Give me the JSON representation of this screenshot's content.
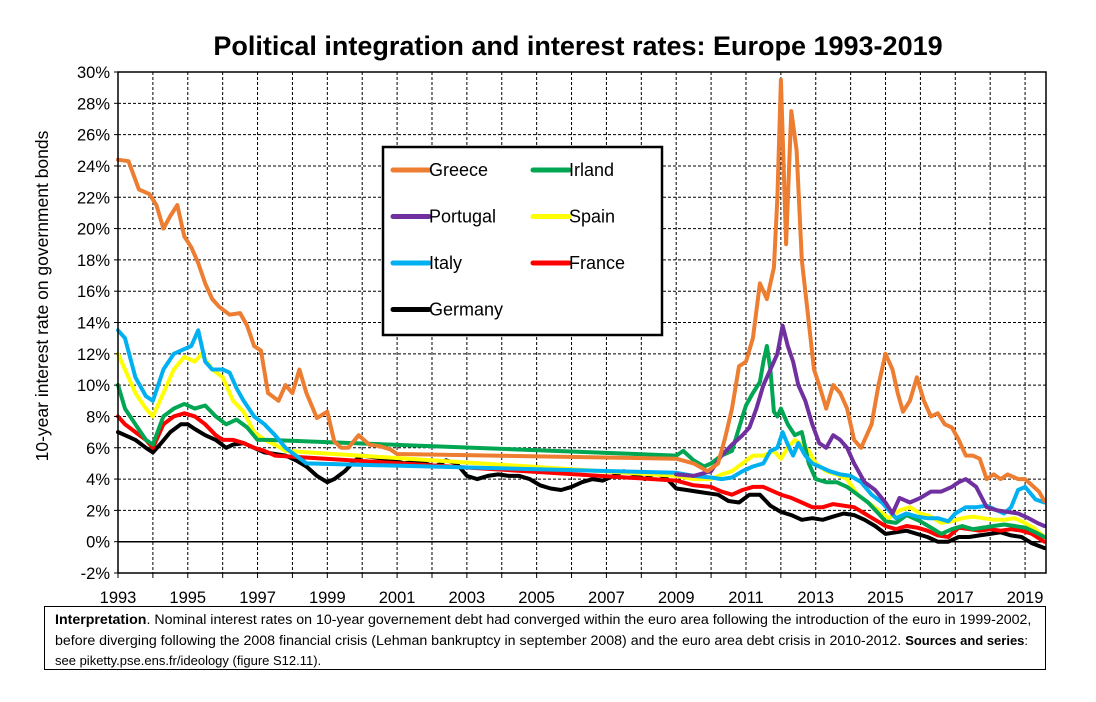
{
  "chart_data": {
    "type": "line",
    "title": "Political integration and interest rates: Europe 1993-2019",
    "ylabel": "10-year interest rate on government bonds",
    "xlabel": "",
    "xlim": [
      1993,
      2019.6
    ],
    "ylim": [
      -2,
      30
    ],
    "y_ticks": [
      -2,
      0,
      2,
      4,
      6,
      8,
      10,
      12,
      14,
      16,
      18,
      20,
      22,
      24,
      26,
      28,
      30
    ],
    "y_tick_labels": [
      "-2%",
      "0%",
      "2%",
      "4%",
      "6%",
      "8%",
      "10%",
      "12%",
      "14%",
      "16%",
      "18%",
      "20%",
      "22%",
      "24%",
      "26%",
      "28%",
      "30%"
    ],
    "x_ticks": [
      1993,
      1995,
      1997,
      1999,
      2001,
      2003,
      2005,
      2007,
      2009,
      2011,
      2013,
      2015,
      2017,
      2019
    ],
    "x_tick_labels": [
      "1993",
      "1995",
      "1997",
      "1999",
      "2001",
      "2003",
      "2005",
      "2007",
      "2009",
      "2011",
      "2013",
      "2015",
      "2017",
      "2019"
    ],
    "grid": true,
    "legend_position": "top-center",
    "series": [
      {
        "name": "Greece",
        "color": "#ED7D31",
        "x": [
          1993,
          1993.3,
          1993.6,
          1993.9,
          1994.1,
          1994.3,
          1994.5,
          1994.7,
          1994.9,
          1995.1,
          1995.3,
          1995.5,
          1995.7,
          1995.9,
          1996.2,
          1996.5,
          1996.7,
          1996.9,
          1997.1,
          1997.3,
          1997.6,
          1997.8,
          1998.0,
          1998.2,
          1998.4,
          1998.7,
          1999.0,
          1999.2,
          1999.4,
          1999.6,
          1999.9,
          2000.2,
          2000.5,
          2000.8,
          2001.0,
          2009.0,
          2009.5,
          2009.9,
          2010.2,
          2010.4,
          2010.6,
          2010.8,
          2011.0,
          2011.2,
          2011.4,
          2011.6,
          2011.8,
          2011.9,
          2012.0,
          2012.15,
          2012.3,
          2012.45,
          2012.6,
          2012.8,
          2012.95,
          2013.1,
          2013.3,
          2013.5,
          2013.7,
          2013.9,
          2014.1,
          2014.3,
          2014.6,
          2014.8,
          2015.0,
          2015.2,
          2015.35,
          2015.5,
          2015.7,
          2015.9,
          2016.1,
          2016.3,
          2016.5,
          2016.7,
          2016.9,
          2017.1,
          2017.3,
          2017.5,
          2017.7,
          2017.9,
          2018.1,
          2018.3,
          2018.5,
          2018.8,
          2019.0,
          2019.2,
          2019.4,
          2019.55
        ],
        "values": [
          24.4,
          24.3,
          22.5,
          22.2,
          21.5,
          20.0,
          20.8,
          21.5,
          19.5,
          18.8,
          17.8,
          16.5,
          15.5,
          15.0,
          14.5,
          14.6,
          13.8,
          12.5,
          12.2,
          9.5,
          9.0,
          10.0,
          9.5,
          11.0,
          9.5,
          7.9,
          8.3,
          6.4,
          6.0,
          6.0,
          6.8,
          6.2,
          6.1,
          5.9,
          5.6,
          5.3,
          5.0,
          4.5,
          5.0,
          6.6,
          8.5,
          11.2,
          11.5,
          13.0,
          16.5,
          15.5,
          17.5,
          22.0,
          29.5,
          19.0,
          27.5,
          25.0,
          18.0,
          14.0,
          11.0,
          10.0,
          8.5,
          10.0,
          9.5,
          8.5,
          6.5,
          6.0,
          7.5,
          10.0,
          12.0,
          11.0,
          9.5,
          8.3,
          9.0,
          10.5,
          9.0,
          8.0,
          8.2,
          7.5,
          7.3,
          6.5,
          5.5,
          5.5,
          5.3,
          4.0,
          4.3,
          4.0,
          4.3,
          4.0,
          4.0,
          3.6,
          3.2,
          2.6
        ]
      },
      {
        "name": "Irland",
        "color": "#00A651",
        "x": [
          1993,
          1993.2,
          1993.5,
          1993.8,
          1994.0,
          1994.3,
          1994.6,
          1994.9,
          1995.2,
          1995.5,
          1995.8,
          1996.1,
          1996.4,
          1996.7,
          1997.0,
          1997.3,
          2009.0,
          2009.2,
          2009.5,
          2009.8,
          2010.0,
          2010.3,
          2010.6,
          2010.9,
          2011.0,
          2011.2,
          2011.4,
          2011.5,
          2011.6,
          2011.7,
          2011.8,
          2011.9,
          2012.0,
          2012.2,
          2012.4,
          2012.6,
          2012.8,
          2013.0,
          2013.3,
          2013.6,
          2013.9,
          2014.2,
          2014.5,
          2014.8,
          2015.0,
          2015.3,
          2015.6,
          2016.0,
          2016.3,
          2016.6,
          2016.9,
          2017.2,
          2017.5,
          2017.8,
          2018.1,
          2018.4,
          2018.7,
          2019.0,
          2019.3,
          2019.55
        ],
        "values": [
          10.0,
          8.5,
          7.5,
          6.5,
          6.2,
          8.0,
          8.5,
          8.8,
          8.5,
          8.7,
          8.0,
          7.5,
          7.8,
          7.3,
          6.5,
          6.5,
          5.5,
          5.8,
          5.2,
          4.8,
          5.0,
          5.5,
          5.8,
          8.0,
          8.7,
          9.5,
          10.2,
          11.5,
          12.5,
          11.0,
          8.3,
          8.0,
          8.5,
          7.5,
          6.8,
          7.0,
          5.0,
          4.0,
          3.8,
          3.8,
          3.5,
          3.0,
          2.5,
          1.8,
          1.3,
          1.2,
          1.7,
          1.3,
          0.9,
          0.5,
          0.8,
          1.0,
          0.8,
          0.9,
          1.0,
          1.1,
          1.0,
          0.9,
          0.6,
          0.3
        ]
      },
      {
        "name": "Portugal",
        "color": "#7030A0",
        "x": [
          2009.0,
          2009.5,
          2010.0,
          2010.3,
          2010.6,
          2010.9,
          2011.1,
          2011.3,
          2011.5,
          2011.7,
          2011.9,
          2012.05,
          2012.2,
          2012.35,
          2012.5,
          2012.7,
          2012.9,
          2013.1,
          2013.3,
          2013.5,
          2013.7,
          2013.9,
          2014.1,
          2014.4,
          2014.7,
          2015.0,
          2015.2,
          2015.4,
          2015.7,
          2016.0,
          2016.3,
          2016.6,
          2016.9,
          2017.1,
          2017.3,
          2017.6,
          2017.9,
          2018.2,
          2018.5,
          2018.8,
          2019.1,
          2019.35,
          2019.55
        ],
        "values": [
          4.3,
          4.2,
          4.5,
          5.5,
          6.2,
          6.8,
          7.3,
          8.5,
          10.0,
          11.0,
          12.0,
          13.8,
          12.5,
          11.5,
          10.0,
          9.0,
          7.5,
          6.3,
          6.0,
          6.8,
          6.5,
          6.0,
          5.0,
          3.8,
          3.3,
          2.5,
          1.8,
          2.8,
          2.5,
          2.8,
          3.2,
          3.2,
          3.5,
          3.8,
          4.0,
          3.5,
          2.2,
          2.0,
          1.9,
          1.8,
          1.5,
          1.2,
          1.0
        ]
      },
      {
        "name": "Spain",
        "color": "#FFFF00",
        "x": [
          1993,
          1993.2,
          1993.5,
          1993.8,
          1994.0,
          1994.3,
          1994.6,
          1994.9,
          1995.2,
          1995.4,
          1995.7,
          1996.0,
          1996.3,
          1996.6,
          1996.9,
          1997.2,
          1997.5,
          1997.8,
          2009.0,
          2009.5,
          2010.0,
          2010.3,
          2010.6,
          2010.9,
          2011.2,
          2011.5,
          2011.8,
          2012.0,
          2012.2,
          2012.4,
          2012.6,
          2012.8,
          2013.0,
          2013.3,
          2013.6,
          2013.9,
          2014.2,
          2014.5,
          2014.8,
          2015.1,
          2015.4,
          2015.7,
          2016.0,
          2016.3,
          2016.6,
          2016.9,
          2017.2,
          2017.5,
          2017.8,
          2018.1,
          2018.4,
          2018.7,
          2019.0,
          2019.3,
          2019.55
        ],
        "values": [
          12.0,
          11.0,
          9.5,
          8.5,
          8.0,
          9.5,
          11.0,
          11.8,
          11.5,
          12.0,
          11.0,
          10.5,
          9.0,
          8.3,
          7.0,
          6.5,
          6.2,
          5.8,
          4.2,
          4.0,
          4.0,
          4.3,
          4.5,
          5.0,
          5.5,
          5.5,
          5.8,
          5.3,
          6.0,
          6.5,
          6.2,
          5.8,
          5.0,
          4.5,
          4.3,
          4.0,
          3.0,
          2.5,
          2.0,
          1.5,
          2.0,
          2.2,
          1.8,
          1.6,
          1.2,
          1.3,
          1.5,
          1.6,
          1.5,
          1.4,
          1.4,
          1.5,
          1.2,
          0.8,
          0.3
        ]
      },
      {
        "name": "Italy",
        "color": "#00B0F0",
        "x": [
          1993,
          1993.2,
          1993.5,
          1993.8,
          1994.0,
          1994.3,
          1994.6,
          1994.9,
          1995.1,
          1995.3,
          1995.5,
          1995.7,
          1996.0,
          1996.2,
          1996.4,
          1996.6,
          1996.9,
          1997.2,
          1997.5,
          1997.8,
          1998.1,
          1998.4,
          2009.0,
          2009.5,
          2010.0,
          2010.3,
          2010.6,
          2010.9,
          2011.2,
          2011.5,
          2011.7,
          2011.9,
          2012.05,
          2012.2,
          2012.35,
          2012.5,
          2012.7,
          2012.9,
          2013.1,
          2013.4,
          2013.7,
          2014.0,
          2014.3,
          2014.6,
          2014.9,
          2015.1,
          2015.3,
          2015.6,
          2015.9,
          2016.2,
          2016.5,
          2016.8,
          2017.0,
          2017.3,
          2017.6,
          2017.9,
          2018.2,
          2018.4,
          2018.6,
          2018.8,
          2019.0,
          2019.3,
          2019.55
        ],
        "values": [
          13.5,
          13.0,
          10.5,
          9.3,
          9.0,
          11.0,
          12.0,
          12.3,
          12.5,
          13.5,
          11.5,
          11.0,
          11.0,
          10.8,
          9.8,
          9.0,
          8.0,
          7.5,
          6.8,
          6.0,
          5.5,
          5.0,
          4.4,
          4.2,
          4.1,
          4.0,
          4.1,
          4.5,
          4.8,
          5.0,
          5.8,
          6.0,
          7.0,
          6.2,
          5.5,
          6.3,
          5.5,
          5.0,
          4.8,
          4.5,
          4.3,
          4.2,
          3.8,
          3.0,
          2.5,
          2.0,
          1.5,
          1.8,
          1.6,
          1.5,
          1.5,
          1.3,
          1.8,
          2.2,
          2.2,
          2.3,
          2.0,
          1.8,
          2.2,
          3.3,
          3.5,
          2.7,
          2.5
        ]
      },
      {
        "name": "France",
        "color": "#FF0000",
        "x": [
          1993,
          1993.2,
          1993.5,
          1993.8,
          1994.0,
          1994.3,
          1994.6,
          1994.9,
          1995.2,
          1995.5,
          1995.8,
          1996.0,
          1996.3,
          1996.6,
          1996.9,
          1997.2,
          1997.5,
          2009.0,
          2009.5,
          2010.0,
          2010.3,
          2010.6,
          2010.9,
          2011.2,
          2011.5,
          2011.8,
          2012.0,
          2012.3,
          2012.6,
          2012.9,
          2013.2,
          2013.5,
          2013.8,
          2014.1,
          2014.4,
          2014.7,
          2015.0,
          2015.3,
          2015.6,
          2015.9,
          2016.2,
          2016.5,
          2016.8,
          2017.1,
          2017.4,
          2017.7,
          2018.0,
          2018.3,
          2018.6,
          2018.9,
          2019.2,
          2019.55
        ],
        "values": [
          8.0,
          7.5,
          7.0,
          6.5,
          6.0,
          7.5,
          8.0,
          8.2,
          8.0,
          7.5,
          6.8,
          6.5,
          6.5,
          6.3,
          6.0,
          5.8,
          5.5,
          3.9,
          3.6,
          3.5,
          3.2,
          3.0,
          3.3,
          3.5,
          3.5,
          3.2,
          3.0,
          2.8,
          2.5,
          2.2,
          2.2,
          2.4,
          2.3,
          2.2,
          1.8,
          1.4,
          1.0,
          0.8,
          1.0,
          0.9,
          0.7,
          0.4,
          0.3,
          0.9,
          0.8,
          0.7,
          0.8,
          0.7,
          0.8,
          0.7,
          0.5,
          0.0
        ]
      },
      {
        "name": "Germany",
        "color": "#000000",
        "x": [
          1993,
          1993.2,
          1993.5,
          1993.8,
          1994.0,
          1994.2,
          1994.5,
          1994.8,
          1995.0,
          1995.2,
          1995.5,
          1995.8,
          1996.1,
          1996.3,
          1996.6,
          1996.9,
          1997.2,
          1997.5,
          1997.8,
          1998.1,
          1998.4,
          1998.7,
          1999.0,
          1999.2,
          1999.5,
          1999.8,
          2000.0,
          2000.3,
          2000.6,
          2000.9,
          2001.2,
          2001.5,
          2001.8,
          2002.1,
          2002.4,
          2002.7,
          2003.0,
          2003.3,
          2003.6,
          2003.9,
          2004.2,
          2004.5,
          2004.8,
          2005.1,
          2005.4,
          2005.7,
          2006.0,
          2006.3,
          2006.6,
          2006.9,
          2007.2,
          2007.5,
          2007.8,
          2008.1,
          2008.4,
          2008.7,
          2009.0,
          2009.3,
          2009.6,
          2009.9,
          2010.2,
          2010.5,
          2010.8,
          2011.1,
          2011.4,
          2011.7,
          2012.0,
          2012.3,
          2012.6,
          2012.9,
          2013.2,
          2013.5,
          2013.8,
          2014.1,
          2014.4,
          2014.7,
          2015.0,
          2015.3,
          2015.6,
          2015.9,
          2016.2,
          2016.5,
          2016.8,
          2017.1,
          2017.4,
          2017.7,
          2018.0,
          2018.3,
          2018.6,
          2018.9,
          2019.2,
          2019.55
        ],
        "values": [
          7.0,
          6.8,
          6.5,
          6.0,
          5.7,
          6.2,
          7.0,
          7.5,
          7.5,
          7.2,
          6.8,
          6.5,
          6.0,
          6.2,
          6.3,
          6.0,
          5.7,
          5.6,
          5.5,
          5.2,
          4.8,
          4.2,
          3.8,
          4.0,
          4.5,
          5.2,
          5.5,
          5.4,
          5.3,
          5.2,
          5.0,
          5.1,
          5.0,
          4.8,
          5.2,
          5.0,
          4.2,
          4.0,
          4.2,
          4.3,
          4.2,
          4.2,
          4.0,
          3.6,
          3.4,
          3.3,
          3.5,
          3.8,
          4.0,
          3.9,
          4.2,
          4.5,
          4.3,
          4.0,
          4.4,
          4.1,
          3.4,
          3.3,
          3.2,
          3.1,
          3.0,
          2.6,
          2.5,
          3.0,
          3.0,
          2.3,
          1.9,
          1.7,
          1.4,
          1.5,
          1.4,
          1.6,
          1.8,
          1.7,
          1.4,
          1.0,
          0.5,
          0.6,
          0.7,
          0.5,
          0.3,
          0.0,
          0.0,
          0.3,
          0.3,
          0.4,
          0.5,
          0.6,
          0.4,
          0.3,
          -0.1,
          -0.4
        ]
      }
    ]
  },
  "note": {
    "lead": "Interpretation",
    "text": ". Nominal interest rates on 10-year governement debt had converged within the euro area following the introduction of the euro in 1999-2002, before diverging following the 2008 financial crisis (Lehman bankruptcy in september 2008) and the euro area debt crisis in 2010-2012. ",
    "sources_label": "Sources and series",
    "sources_text": ": see piketty.pse.ens.fr/ideology (figure S12.11)."
  }
}
